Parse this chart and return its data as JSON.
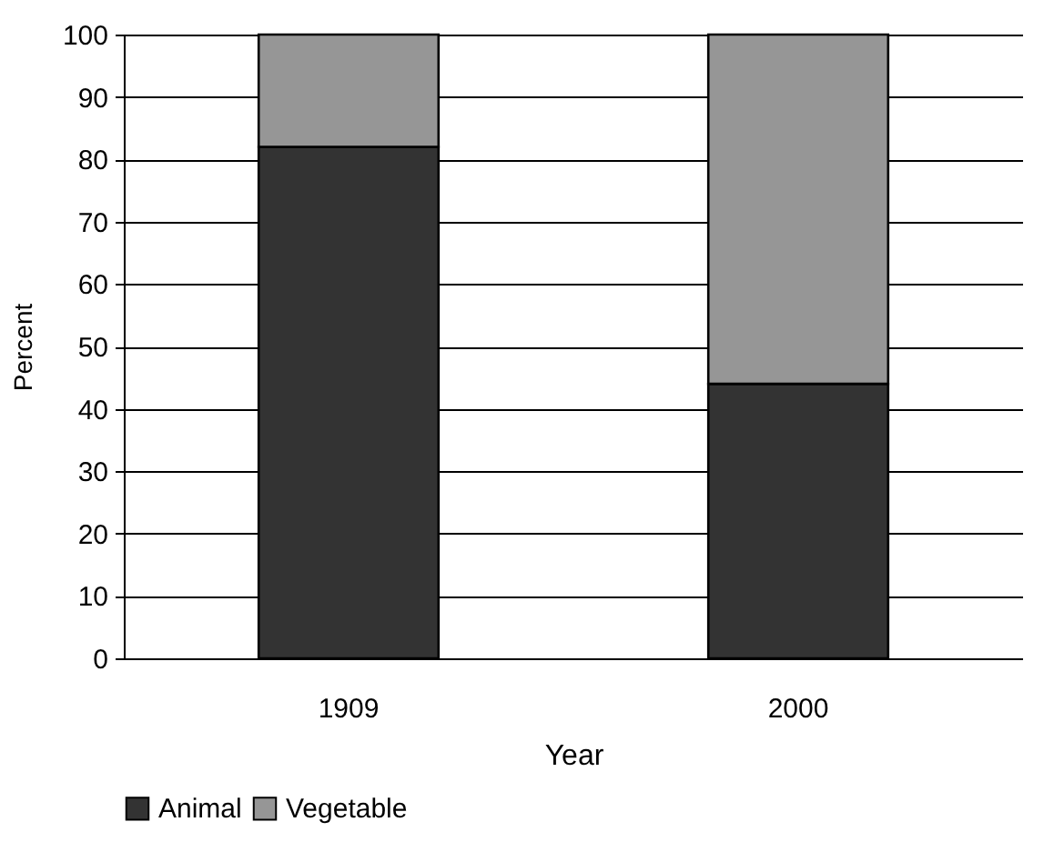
{
  "chart_data": {
    "type": "bar",
    "stacked": true,
    "xlabel": "Year",
    "ylabel": "Percent",
    "categories": [
      "1909",
      "2000"
    ],
    "series": [
      {
        "name": "Animal",
        "color": "#333333",
        "values": [
          82,
          44
        ]
      },
      {
        "name": "Vegetable",
        "color": "#969696",
        "values": [
          18,
          56
        ]
      }
    ],
    "ylim": [
      0,
      100
    ],
    "yticks": [
      0,
      10,
      20,
      30,
      40,
      50,
      60,
      70,
      80,
      90,
      100
    ],
    "grid": "y",
    "legend": "bottom"
  }
}
